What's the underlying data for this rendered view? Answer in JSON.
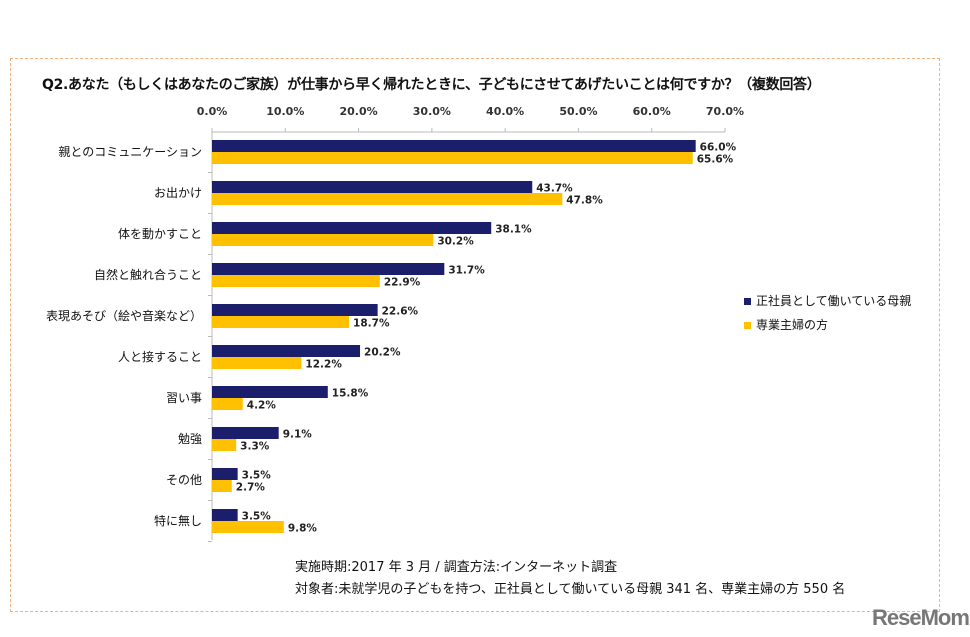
{
  "chart_data": {
    "type": "bar",
    "orientation": "horizontal",
    "title": "Q2.あなた（もしくはあなたのご家族）が仕事から早く帰れたときに、子どもにさせてあげたいことは何ですか？（複数回答）",
    "categories": [
      "親とのコミュニケーション",
      "お出かけ",
      "体を動かすこと",
      "自然と触れ合うこと",
      "表現あそび（絵や音楽など）",
      "人と接すること",
      "習い事",
      "勉強",
      "その他",
      "特に無し"
    ],
    "series": [
      {
        "name": "正社員として働いている母親",
        "color": "#1b1f6b",
        "values": [
          66.0,
          43.7,
          38.1,
          31.7,
          22.6,
          20.2,
          15.8,
          9.1,
          3.5,
          3.5
        ]
      },
      {
        "name": "専業主婦の方",
        "color": "#ffc000",
        "values": [
          65.6,
          47.8,
          30.2,
          22.9,
          18.7,
          12.2,
          4.2,
          3.3,
          2.7,
          9.8
        ]
      }
    ],
    "xlim": [
      0,
      70
    ],
    "xticks": [
      "0.0%",
      "10.0%",
      "20.0%",
      "30.0%",
      "40.0%",
      "50.0%",
      "60.0%",
      "70.0%"
    ],
    "xaxis_position": "top",
    "grid": false,
    "legend_position": "right"
  },
  "notes": {
    "line1": "実施時期:2017 年  3 月  /  調査方法:インターネット調査",
    "line2": "対象者:未就学児の子どもを持つ、正社員として働いている母親 341 名、専業主婦の方 550 名"
  },
  "logo": "ReseMom"
}
